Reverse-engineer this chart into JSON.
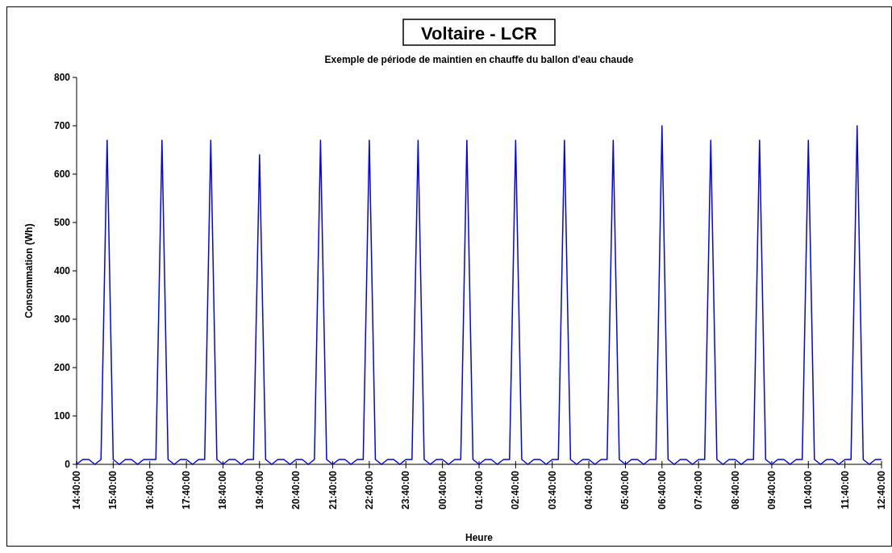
{
  "chart_data": {
    "type": "line",
    "title": "Voltaire - LCR",
    "subtitle": "Exemple de période de maintien en chauffe du ballon d'eau chaude",
    "xlabel": "Heure",
    "ylabel": "Consommation (Wh)",
    "ylim": [
      0,
      800
    ],
    "yticks": [
      0,
      100,
      200,
      300,
      400,
      500,
      600,
      700,
      800
    ],
    "marker": "none",
    "line_style": "solid",
    "categories": [
      "14:40:00",
      null,
      null,
      null,
      null,
      null,
      "15:40:00",
      null,
      null,
      null,
      null,
      null,
      "16:40:00",
      null,
      null,
      null,
      null,
      null,
      "17:40:00",
      null,
      null,
      null,
      null,
      null,
      "18:40:00",
      null,
      null,
      null,
      null,
      null,
      "19:40:00",
      null,
      null,
      null,
      null,
      null,
      "20:40:00",
      null,
      null,
      null,
      null,
      null,
      "21:40:00",
      null,
      null,
      null,
      null,
      null,
      "22:40:00",
      null,
      null,
      null,
      null,
      null,
      "23:40:00",
      null,
      null,
      null,
      null,
      null,
      "00:40:00",
      null,
      null,
      null,
      null,
      null,
      "01:40:00",
      null,
      null,
      null,
      null,
      null,
      "02:40:00",
      null,
      null,
      null,
      null,
      null,
      "03:40:00",
      null,
      null,
      null,
      null,
      null,
      "04:40:00",
      null,
      null,
      null,
      null,
      null,
      "05:40:00",
      null,
      null,
      null,
      null,
      null,
      "06:40:00",
      null,
      null,
      null,
      null,
      null,
      "07:40:00",
      null,
      null,
      null,
      null,
      null,
      "08:40:00",
      null,
      null,
      null,
      null,
      null,
      "09:40:00",
      null,
      null,
      null,
      null,
      null,
      "10:40:00",
      null,
      null,
      null,
      null,
      null,
      "11:40:00",
      null,
      null,
      null,
      null,
      null,
      "12:40:00"
    ],
    "series": [
      {
        "color": "#0000ff",
        "values": [
          0,
          10,
          10,
          0,
          10,
          670,
          10,
          0,
          10,
          10,
          0,
          10,
          10,
          10,
          670,
          10,
          0,
          10,
          10,
          0,
          10,
          10,
          670,
          10,
          0,
          10,
          10,
          0,
          10,
          10,
          640,
          10,
          0,
          10,
          10,
          0,
          10,
          10,
          0,
          10,
          670,
          10,
          0,
          10,
          10,
          0,
          10,
          10,
          670,
          10,
          0,
          10,
          10,
          0,
          10,
          10,
          670,
          10,
          0,
          10,
          10,
          0,
          10,
          10,
          670,
          10,
          0,
          10,
          10,
          0,
          10,
          10,
          670,
          10,
          0,
          10,
          10,
          0,
          10,
          10,
          670,
          10,
          0,
          10,
          10,
          0,
          10,
          10,
          670,
          10,
          0,
          10,
          10,
          0,
          10,
          10,
          700,
          10,
          0,
          10,
          10,
          0,
          10,
          10,
          670,
          10,
          0,
          10,
          10,
          0,
          10,
          10,
          670,
          10,
          0,
          10,
          10,
          0,
          10,
          10,
          670,
          10,
          0,
          10,
          10,
          0,
          10,
          10,
          700,
          10,
          0,
          10,
          10
        ]
      }
    ]
  }
}
